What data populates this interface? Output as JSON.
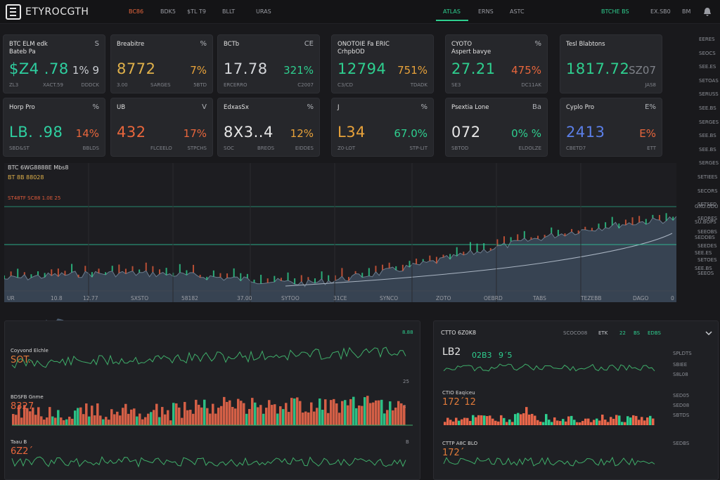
{
  "app": {
    "name": "ETYROCGTH"
  },
  "nav": {
    "items": [
      {
        "label": "BC86",
        "active": true
      },
      {
        "label": "BDK5"
      },
      {
        "label": "$TL T9"
      },
      {
        "label": "BLLT"
      },
      {
        "label": "URAS"
      }
    ],
    "tabs": [
      {
        "label": "ATLAS",
        "active": true
      },
      {
        "label": "ERNS"
      },
      {
        "label": "ASTC"
      }
    ],
    "right": [
      {
        "label": "BTCHE BS"
      },
      {
        "label": "EX.SB0"
      },
      {
        "label": "BM"
      }
    ]
  },
  "cards": [
    {
      "label": "BTC  ELM edk\nBateb Pa",
      "corner": "S",
      "value": "$Z4 .78",
      "value_color": "#2ecfa0",
      "pct": "1% 9",
      "pct_color": "#c9ccd1",
      "f1": "ZL3",
      "f2": "XACT.59",
      "f3": "DDDCK"
    },
    {
      "label": "Breabitre",
      "corner": "%",
      "value": "8772",
      "value_color": "#e0b14a",
      "pct": "7%",
      "pct_color": "#e8a23a",
      "f1": "3.00",
      "f2": "SARGES",
      "f3": "5BTD"
    },
    {
      "label": "BCTb",
      "corner": "CE",
      "value": "17.78",
      "value_color": "#d4d6da",
      "pct": "321%",
      "pct_color": "#2ecf8f",
      "f1": "ERCERRO",
      "f2": "",
      "f3": "C2007"
    },
    {
      "label": "ONOTOIE Fa ERIC\nCrhpbOD",
      "corner": "",
      "value": "12794",
      "value_color": "#2ecf8f",
      "pct": "751%",
      "pct_color": "#e8a23a",
      "f1": "C3/CD",
      "f2": "",
      "f3": "TDADK"
    },
    {
      "label": "CYOTO\nAspert bavye",
      "corner": "%",
      "value": "27.21",
      "value_color": "#2ecf8f",
      "pct": "475%",
      "pct_color": "#e8663c",
      "f1": "SE3",
      "f2": "",
      "f3": "DC11AK"
    },
    {
      "label": "Tesl Blabtons",
      "corner": "",
      "value": "1817.72",
      "value_color": "#2ecf8f",
      "pct": "SZ07",
      "pct_color": "#7f8289",
      "f1": "",
      "f2": "",
      "f3": "JAS8"
    },
    {
      "label": "Horp Pro",
      "corner": "%",
      "value": "LB. .98",
      "value_color": "#2ecfa0",
      "pct": "14%",
      "pct_color": "#e8663c",
      "f1": "SBD&ST",
      "f2": "",
      "f3": "BBLDS"
    },
    {
      "label": "UB",
      "corner": "V",
      "value": "432",
      "value_color": "#e8663c",
      "pct": "17%",
      "pct_color": "#e8663c",
      "f1": "",
      "f2": "FLCEELO",
      "f3": "STPCHS"
    },
    {
      "label": "EdxasSx",
      "corner": "%",
      "value": "8X3..4",
      "value_color": "#e6e6e6",
      "pct": "12%",
      "pct_color": "#e8a23a",
      "f1": "SOC",
      "f2": "BREOS",
      "f3": "EIDDES"
    },
    {
      "label": "J",
      "corner": "%",
      "value": "L34",
      "value_color": "#e8a23a",
      "pct": "67.0%",
      "pct_color": "#2ecf8f",
      "f1": "Z0-LOT",
      "f2": "",
      "f3": "STP-LIT"
    },
    {
      "label": "Psextia Lone",
      "corner": "Ba",
      "value": "072",
      "value_color": "#e6e6e6",
      "pct": "0% %",
      "pct_color": "#2ecf8f",
      "f1": "SBTOD",
      "f2": "",
      "f3": "ELDOLZE"
    },
    {
      "label": "Cyplo Pro",
      "corner": "E%",
      "value": "2413",
      "value_color": "#5b7fe8",
      "pct": "E%",
      "pct_color": "#e8663c",
      "f1": "CBETD7",
      "f2": "",
      "f3": "ETT"
    }
  ],
  "side_ticks": [
    "EERES",
    "SEOCS",
    "SEE.ES",
    "SETOAS",
    "SERUSS",
    "SEE.BS",
    "SERGES",
    "SEE.BS",
    "SEE.BS",
    "SERGES",
    "SETIEES",
    "SECORS",
    "SETSED",
    "SEORES",
    "SEEOBS",
    "SEEDES",
    "SETOES",
    "SEEOS"
  ],
  "main_chart": {
    "title": "BTC  6WG8888E Mbs8",
    "subtitle": "BT 8B  88028",
    "legend": "ST48TF  SC88  1.0E  25",
    "right_ticks": [
      "GXO.ODU",
      "SU.BOPS",
      "SEDDBS",
      "SEE.ES",
      "SEE.BS"
    ]
  },
  "x_ticks": [
    "UR",
    "10.8",
    "12.77",
    "SXSTO",
    "58182",
    "37.00",
    "SYTOO",
    "31CE",
    "SYNCO",
    "ZOTO",
    "OEBRD",
    "TABS",
    "TEZEBB",
    "DAGO",
    "0"
  ],
  "left_panel": {
    "header": "8.88",
    "rows": [
      {
        "label": "Coyvond Elchle",
        "value": "SOT.."
      },
      {
        "label": "BDSFB Gnme",
        "value": "8327"
      },
      {
        "label": "Taau B",
        "value": "6Z2´"
      }
    ],
    "y_labels": [
      "25",
      "8",
      "B"
    ]
  },
  "right_panel": {
    "title": "CTTO 6Z0K8",
    "tabs": [
      "SCOCO08",
      "ETK",
      "22",
      "BS",
      "EDBS"
    ],
    "rows": [
      {
        "label": "",
        "value": "LB2"
      },
      {
        "label": "CTIO Eaqiceu",
        "value": "172´12"
      },
      {
        "label": "CTTP A8C BLO",
        "value": "172´"
      }
    ],
    "stats": [
      "02B3",
      "9´5"
    ],
    "side_labels": [
      "SPLDTS",
      "SBIEE",
      "S8L08",
      "SED05",
      "SED08",
      "SBTDS",
      "SEDBS"
    ]
  }
}
